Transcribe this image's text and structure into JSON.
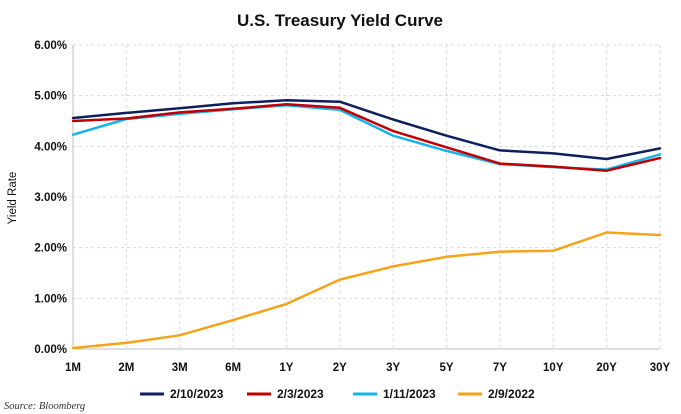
{
  "chart_data": {
    "type": "line",
    "title": "U.S. Treasury Yield Curve",
    "ylabel": "Yield Rate",
    "xlabel": "",
    "categories": [
      "1M",
      "2M",
      "3M",
      "6M",
      "1Y",
      "2Y",
      "3Y",
      "5Y",
      "7Y",
      "10Y",
      "20Y",
      "30Y"
    ],
    "ylim": [
      0,
      6
    ],
    "yticks": [
      0,
      1,
      2,
      3,
      4,
      5,
      6
    ],
    "ytick_labels": [
      "0.00%",
      "1.00%",
      "2.00%",
      "3.00%",
      "4.00%",
      "5.00%",
      "6.00%"
    ],
    "grid": "horizontal dashed",
    "legend_position": "bottom",
    "series": [
      {
        "name": "2/10/2023",
        "color": "#0d1f5c",
        "values": [
          4.56,
          4.66,
          4.75,
          4.85,
          4.91,
          4.88,
          4.53,
          4.21,
          3.92,
          3.86,
          3.75,
          3.96
        ]
      },
      {
        "name": "2/3/2023",
        "color": "#c00000",
        "values": [
          4.5,
          4.55,
          4.67,
          4.74,
          4.83,
          4.76,
          4.3,
          3.98,
          3.66,
          3.6,
          3.52,
          3.77
        ]
      },
      {
        "name": "1/11/2023",
        "color": "#17b4ea",
        "values": [
          4.23,
          4.54,
          4.64,
          4.73,
          4.81,
          4.72,
          4.21,
          3.91,
          3.65,
          3.59,
          3.54,
          3.84
        ]
      },
      {
        "name": "2/9/2022",
        "color": "#f5a31a",
        "values": [
          0.02,
          0.12,
          0.27,
          0.57,
          0.89,
          1.37,
          1.63,
          1.82,
          1.92,
          1.94,
          2.3,
          2.25
        ]
      }
    ]
  },
  "source": "Source: Bloomberg"
}
